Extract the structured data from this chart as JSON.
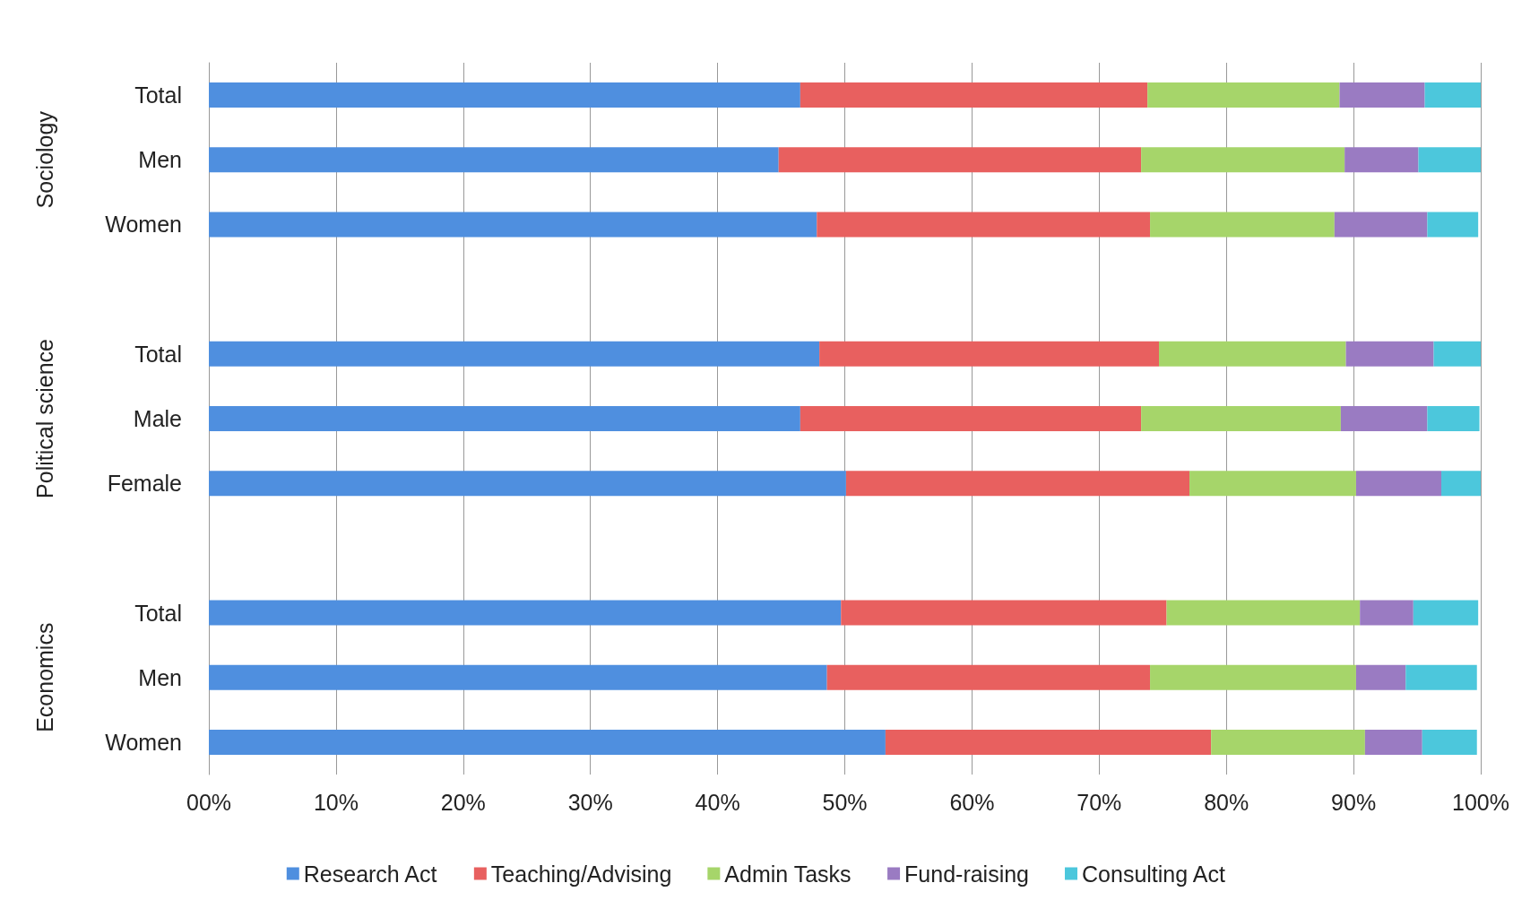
{
  "chart_data": {
    "type": "bar",
    "orientation": "horizontal",
    "stacked": true,
    "categories": [
      "Total",
      "Men",
      "Women",
      null,
      "Total",
      "Male",
      "Female",
      null,
      "Total",
      "Men",
      "Women"
    ],
    "series": [
      {
        "name": "Research Act",
        "color": "#4f8fdf",
        "values": [
          46.5,
          44.8,
          47.8,
          null,
          48.0,
          46.5,
          50.1,
          null,
          49.7,
          48.6,
          53.2
        ]
      },
      {
        "name": "Teaching/Advising",
        "color": "#e8605f",
        "values": [
          27.3,
          28.5,
          26.2,
          null,
          26.7,
          26.8,
          27.0,
          null,
          25.6,
          25.4,
          25.6
        ]
      },
      {
        "name": "Admin Tasks",
        "color": "#a6d56a",
        "values": [
          15.1,
          16.0,
          14.5,
          null,
          14.7,
          15.7,
          13.1,
          null,
          15.2,
          16.2,
          12.1
        ]
      },
      {
        "name": "Fund-raising",
        "color": "#9a7bc2",
        "values": [
          6.7,
          5.8,
          7.3,
          null,
          6.9,
          6.8,
          6.7,
          null,
          4.2,
          3.9,
          4.5
        ]
      },
      {
        "name": "Consulting Act",
        "color": "#4cc7dc",
        "values": [
          4.4,
          4.9,
          4.0,
          null,
          3.7,
          4.1,
          3.1,
          null,
          5.1,
          5.6,
          4.3
        ]
      }
    ],
    "xlim": [
      0,
      100
    ],
    "xticks": [
      {
        "value": 0,
        "label": "00%"
      },
      {
        "value": 10,
        "label": "10%"
      },
      {
        "value": 20,
        "label": "20%"
      },
      {
        "value": 30,
        "label": "30%"
      },
      {
        "value": 40,
        "label": "40%"
      },
      {
        "value": 50,
        "label": "50%"
      },
      {
        "value": 60,
        "label": "60%"
      },
      {
        "value": 70,
        "label": "70%"
      },
      {
        "value": 80,
        "label": "80%"
      },
      {
        "value": 90,
        "label": "90%"
      },
      {
        "value": 100,
        "label": "100%"
      }
    ],
    "annotations": [
      "Sociology",
      "Political science",
      "Economics"
    ],
    "grid": "x",
    "legend": "bottom"
  }
}
